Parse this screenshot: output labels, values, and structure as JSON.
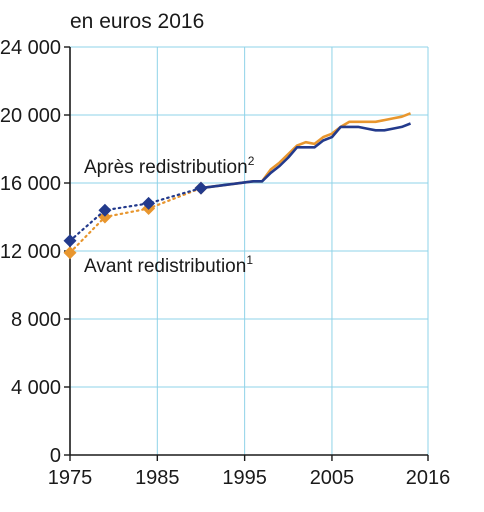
{
  "chart_data": {
    "type": "line",
    "unit_label": "en euros 2016",
    "xlabel": "",
    "ylabel": "",
    "xlim": [
      1975,
      2016
    ],
    "ylim": [
      0,
      24000
    ],
    "x_ticks": [
      1975,
      1985,
      1995,
      2005,
      2016
    ],
    "y_ticks": [
      0,
      4000,
      8000,
      12000,
      16000,
      20000,
      24000
    ],
    "y_tick_labels": [
      "0",
      "4 000",
      "8 000",
      "12 000",
      "16 000",
      "20 000",
      "24 000"
    ],
    "grid": true,
    "series": [
      {
        "name": "Après redistribution",
        "note": "2",
        "color": "#233a8c",
        "points": [
          {
            "x": 1975,
            "y": 12600
          },
          {
            "x": 1979,
            "y": 14400
          },
          {
            "x": 1984,
            "y": 14800
          },
          {
            "x": 1990,
            "y": 15700
          }
        ],
        "line": [
          {
            "x": 1990,
            "y": 15700
          },
          {
            "x": 1996,
            "y": 16100
          },
          {
            "x": 1997,
            "y": 16100
          },
          {
            "x": 1998,
            "y": 16600
          },
          {
            "x": 1999,
            "y": 17000
          },
          {
            "x": 2000,
            "y": 17500
          },
          {
            "x": 2001,
            "y": 18100
          },
          {
            "x": 2002,
            "y": 18100
          },
          {
            "x": 2003,
            "y": 18100
          },
          {
            "x": 2004,
            "y": 18500
          },
          {
            "x": 2005,
            "y": 18700
          },
          {
            "x": 2006,
            "y": 19300
          },
          {
            "x": 2007,
            "y": 19300
          },
          {
            "x": 2008,
            "y": 19300
          },
          {
            "x": 2009,
            "y": 19200
          },
          {
            "x": 2010,
            "y": 19100
          },
          {
            "x": 2011,
            "y": 19100
          },
          {
            "x": 2012,
            "y": 19200
          },
          {
            "x": 2013,
            "y": 19300
          },
          {
            "x": 2014,
            "y": 19500
          }
        ]
      },
      {
        "name": "Avant redistribution",
        "note": "1",
        "color": "#e8962e",
        "points": [
          {
            "x": 1975,
            "y": 11900
          },
          {
            "x": 1979,
            "y": 14000
          },
          {
            "x": 1984,
            "y": 14500
          },
          {
            "x": 1990,
            "y": 15700
          }
        ],
        "line": [
          {
            "x": 1990,
            "y": 15700
          },
          {
            "x": 1996,
            "y": 16100
          },
          {
            "x": 1997,
            "y": 16100
          },
          {
            "x": 1998,
            "y": 16800
          },
          {
            "x": 1999,
            "y": 17200
          },
          {
            "x": 2000,
            "y": 17700
          },
          {
            "x": 2001,
            "y": 18200
          },
          {
            "x": 2002,
            "y": 18400
          },
          {
            "x": 2003,
            "y": 18300
          },
          {
            "x": 2004,
            "y": 18700
          },
          {
            "x": 2005,
            "y": 18900
          },
          {
            "x": 2006,
            "y": 19300
          },
          {
            "x": 2007,
            "y": 19600
          },
          {
            "x": 2008,
            "y": 19600
          },
          {
            "x": 2009,
            "y": 19600
          },
          {
            "x": 2010,
            "y": 19600
          },
          {
            "x": 2011,
            "y": 19700
          },
          {
            "x": 2012,
            "y": 19800
          },
          {
            "x": 2013,
            "y": 19900
          },
          {
            "x": 2014,
            "y": 20100
          }
        ]
      }
    ]
  }
}
